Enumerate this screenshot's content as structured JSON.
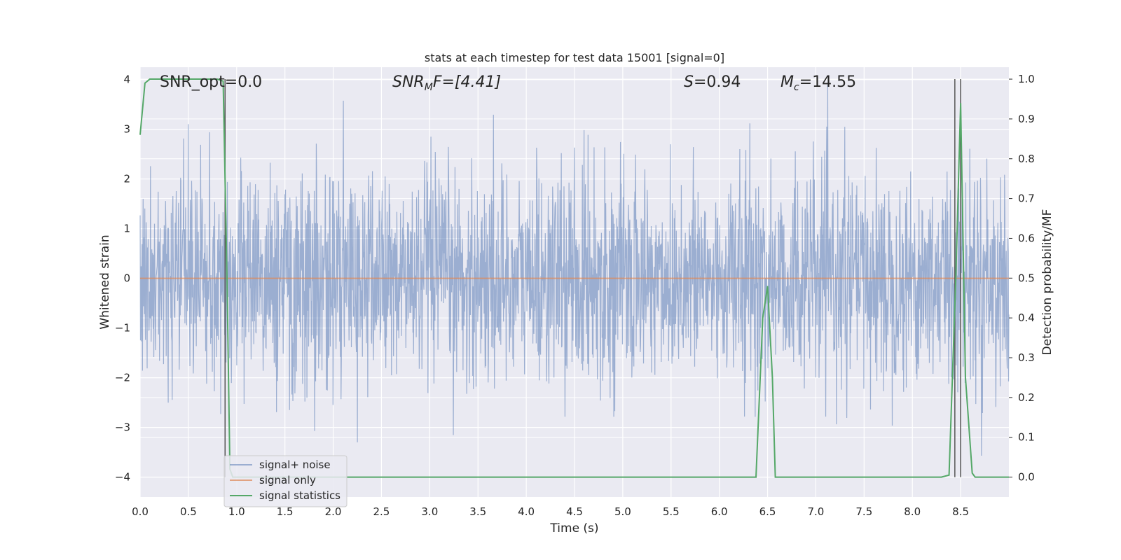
{
  "chart_data": {
    "type": "line",
    "title": "stats at each timestep for test data 15001 [signal=0]",
    "xlabel": "Time (s)",
    "ylabel_left": "Whitened strain",
    "ylabel_right": "Detection probability/MF",
    "xlim": [
      0.0,
      9.0
    ],
    "ylim_left": [
      -4.4,
      4.25
    ],
    "ylim_right": [
      -0.05,
      1.03
    ],
    "xticks": [
      "0.0",
      "0.5",
      "1.0",
      "1.5",
      "2.0",
      "2.5",
      "3.0",
      "3.5",
      "4.0",
      "4.5",
      "5.0",
      "5.5",
      "6.0",
      "6.5",
      "7.0",
      "7.5",
      "8.0",
      "8.5"
    ],
    "xtick_values": [
      0.0,
      0.5,
      1.0,
      1.5,
      2.0,
      2.5,
      3.0,
      3.5,
      4.0,
      4.5,
      5.0,
      5.5,
      6.0,
      6.5,
      7.0,
      7.5,
      8.0,
      8.5
    ],
    "yticks_left": [
      "−4",
      "−3",
      "−2",
      "−1",
      "0",
      "1",
      "2",
      "3",
      "4"
    ],
    "ytick_values_left": [
      -4,
      -3,
      -2,
      -1,
      0,
      1,
      2,
      3,
      4
    ],
    "yticks_right": [
      "0.0",
      "0.1",
      "0.2",
      "0.3",
      "0.4",
      "0.5",
      "0.6",
      "0.7",
      "0.8",
      "0.9",
      "1.0"
    ],
    "ytick_values_right": [
      0.0,
      0.1,
      0.2,
      0.3,
      0.4,
      0.5,
      0.6,
      0.7,
      0.8,
      0.9,
      1.0
    ],
    "grid": true,
    "legend_position": "lower-left",
    "annotations": {
      "snr_opt": "SNR_opt=0.0",
      "snr_mf_prefix": "SNR",
      "snr_mf_sub": "M",
      "snr_mf_suffix": "F=[4.41]",
      "s_prefix": "S",
      "s_suffix": "=0.94",
      "mc_prefix": "M",
      "mc_sub": "c",
      "mc_suffix": "=14.55"
    },
    "vertical_lines_x": [
      0.88,
      8.44,
      8.5
    ],
    "series": [
      {
        "name": "signal+ noise",
        "color": "#4c72b0",
        "opacity": 0.5,
        "noise_band": {
          "inner": 1.5,
          "peaks_high": [
            3.2,
            3.9,
            3.1,
            3.1
          ],
          "peaks_low": [
            -3.7,
            -3.4,
            -3.3,
            -4.0
          ]
        }
      },
      {
        "name": "signal only",
        "color": "#dd8452",
        "values_constant": 0.0
      },
      {
        "name": "signal statistics",
        "color": "#55a868",
        "x": [
          0.0,
          0.05,
          0.1,
          0.2,
          0.4,
          0.6,
          0.8,
          0.86,
          0.9,
          0.93,
          0.96,
          1.0,
          6.3,
          6.38,
          6.45,
          6.5,
          6.55,
          6.58,
          8.3,
          8.38,
          8.45,
          8.5,
          8.55,
          8.62,
          8.65,
          8.75,
          9.0
        ],
        "values": [
          0.86,
          0.99,
          1.0,
          1.0,
          1.0,
          1.0,
          1.0,
          0.995,
          0.5,
          0.02,
          0.0,
          0.0,
          0.0,
          0.0,
          0.4,
          0.48,
          0.25,
          0.0,
          0.0,
          0.005,
          0.5,
          0.94,
          0.25,
          0.01,
          0.0,
          0.0,
          0.0
        ]
      }
    ]
  }
}
